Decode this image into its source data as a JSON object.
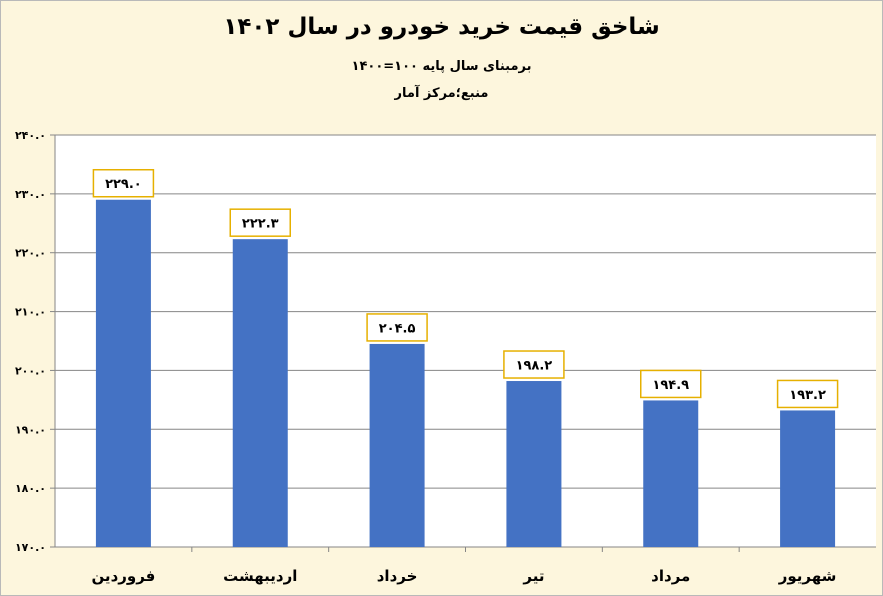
{
  "chart_data": {
    "type": "bar",
    "title": "شاخق قیمت خرید خودرو  در سال ۱۴۰۲",
    "subtitle": "برمبنای سال پایه ۱۰۰=۱۴۰۰",
    "source": "منبع؛مرکز آمار",
    "categories": [
      "فروردین",
      "اردیبهشت",
      "خرداد",
      "تیر",
      "مرداد",
      "شهریور"
    ],
    "values": [
      229.0,
      222.3,
      204.5,
      198.2,
      194.9,
      193.2
    ],
    "value_labels": [
      "۲۲۹.۰",
      "۲۲۲.۳",
      "۲۰۴.۵",
      "۱۹۸.۲",
      "۱۹۴.۹",
      "۱۹۳.۲"
    ],
    "ylim": [
      170,
      240
    ],
    "yticks": [
      170,
      180,
      190,
      200,
      210,
      220,
      230,
      240
    ],
    "ytick_labels": [
      "۱۷۰.۰",
      "۱۸۰.۰",
      "۱۹۰.۰",
      "۲۰۰.۰",
      "۲۱۰.۰",
      "۲۲۰.۰",
      "۲۳۰.۰",
      "۲۴۰.۰"
    ],
    "xlabel": "",
    "ylabel": "",
    "grid": true,
    "bar_color": "#4472c4",
    "label_border_color": "#e6b000",
    "plot_background": "#ffffff"
  }
}
